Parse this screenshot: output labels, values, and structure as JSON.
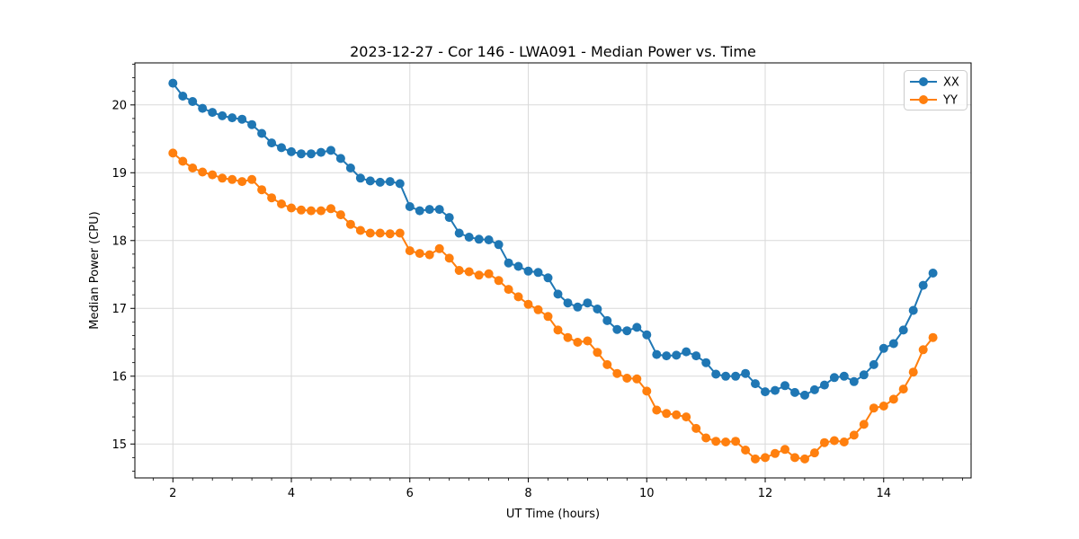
{
  "figure": {
    "background": "#ffffff"
  },
  "chart_data": {
    "type": "line",
    "title": "2023-12-27 - Cor 146 - LWA091 - Median Power vs. Time",
    "xlabel": "UT Time (hours)",
    "ylabel": "Median Power (CPU)",
    "xlim": [
      1.358,
      15.476
    ],
    "ylim": [
      14.5,
      20.62
    ],
    "x_major_ticks": [
      2,
      4,
      6,
      8,
      10,
      12,
      14
    ],
    "y_major_ticks": [
      15,
      16,
      17,
      18,
      19,
      20
    ],
    "x_minor_step": 0.33333,
    "y_minor_step": 0.2,
    "grid": "major",
    "grid_color": "#d9d9d9",
    "legend_position": "upper right",
    "x": [
      2.0,
      2.167,
      2.333,
      2.5,
      2.667,
      2.833,
      3.0,
      3.167,
      3.333,
      3.5,
      3.667,
      3.833,
      4.0,
      4.167,
      4.333,
      4.5,
      4.667,
      4.833,
      5.0,
      5.167,
      5.333,
      5.5,
      5.667,
      5.833,
      6.0,
      6.167,
      6.333,
      6.5,
      6.667,
      6.833,
      7.0,
      7.167,
      7.333,
      7.5,
      7.667,
      7.833,
      8.0,
      8.167,
      8.333,
      8.5,
      8.667,
      8.833,
      9.0,
      9.167,
      9.333,
      9.5,
      9.667,
      9.833,
      10.0,
      10.167,
      10.333,
      10.5,
      10.667,
      10.833,
      11.0,
      11.167,
      11.333,
      11.5,
      11.667,
      11.833,
      12.0,
      12.167,
      12.333,
      12.5,
      12.667,
      12.833,
      13.0,
      13.167,
      13.333,
      13.5,
      13.667,
      13.833,
      14.0,
      14.167,
      14.333,
      14.5,
      14.667,
      14.833
    ],
    "series": [
      {
        "name": "XX",
        "color": "#1f77b4",
        "marker": "circle",
        "values": [
          20.32,
          20.13,
          20.05,
          19.95,
          19.89,
          19.84,
          19.81,
          19.79,
          19.71,
          19.58,
          19.44,
          19.37,
          19.31,
          19.28,
          19.28,
          19.3,
          19.33,
          19.21,
          19.07,
          18.92,
          18.88,
          18.86,
          18.87,
          18.84,
          18.5,
          18.44,
          18.46,
          18.46,
          18.34,
          18.11,
          18.05,
          18.02,
          18.01,
          17.94,
          17.67,
          17.62,
          17.55,
          17.53,
          17.45,
          17.21,
          17.08,
          17.02,
          17.08,
          16.99,
          16.82,
          16.69,
          16.67,
          16.72,
          16.61,
          16.32,
          16.3,
          16.31,
          16.36,
          16.3,
          16.2,
          16.03,
          16.0,
          16.0,
          16.04,
          15.89,
          15.77,
          15.79,
          15.86,
          15.76,
          15.72,
          15.8,
          15.87,
          15.98,
          16.0,
          15.92,
          16.02,
          16.17,
          16.41,
          16.48,
          16.68,
          16.97,
          17.34,
          17.52
        ]
      },
      {
        "name": "YY",
        "color": "#ff7f0e",
        "marker": "circle",
        "values": [
          19.29,
          19.17,
          19.07,
          19.01,
          18.97,
          18.92,
          18.9,
          18.87,
          18.9,
          18.75,
          18.63,
          18.54,
          18.48,
          18.45,
          18.44,
          18.44,
          18.47,
          18.38,
          18.24,
          18.15,
          18.11,
          18.11,
          18.1,
          18.11,
          17.85,
          17.81,
          17.79,
          17.88,
          17.74,
          17.56,
          17.54,
          17.49,
          17.51,
          17.41,
          17.28,
          17.17,
          17.06,
          16.98,
          16.88,
          16.68,
          16.57,
          16.5,
          16.52,
          16.35,
          16.17,
          16.04,
          15.97,
          15.96,
          15.78,
          15.5,
          15.45,
          15.43,
          15.4,
          15.23,
          15.09,
          15.04,
          15.03,
          15.04,
          14.91,
          14.78,
          14.8,
          14.86,
          14.92,
          14.8,
          14.78,
          14.87,
          15.02,
          15.05,
          15.03,
          15.13,
          15.29,
          15.53,
          15.56,
          15.66,
          15.81,
          16.06,
          16.39,
          16.57
        ]
      }
    ]
  }
}
